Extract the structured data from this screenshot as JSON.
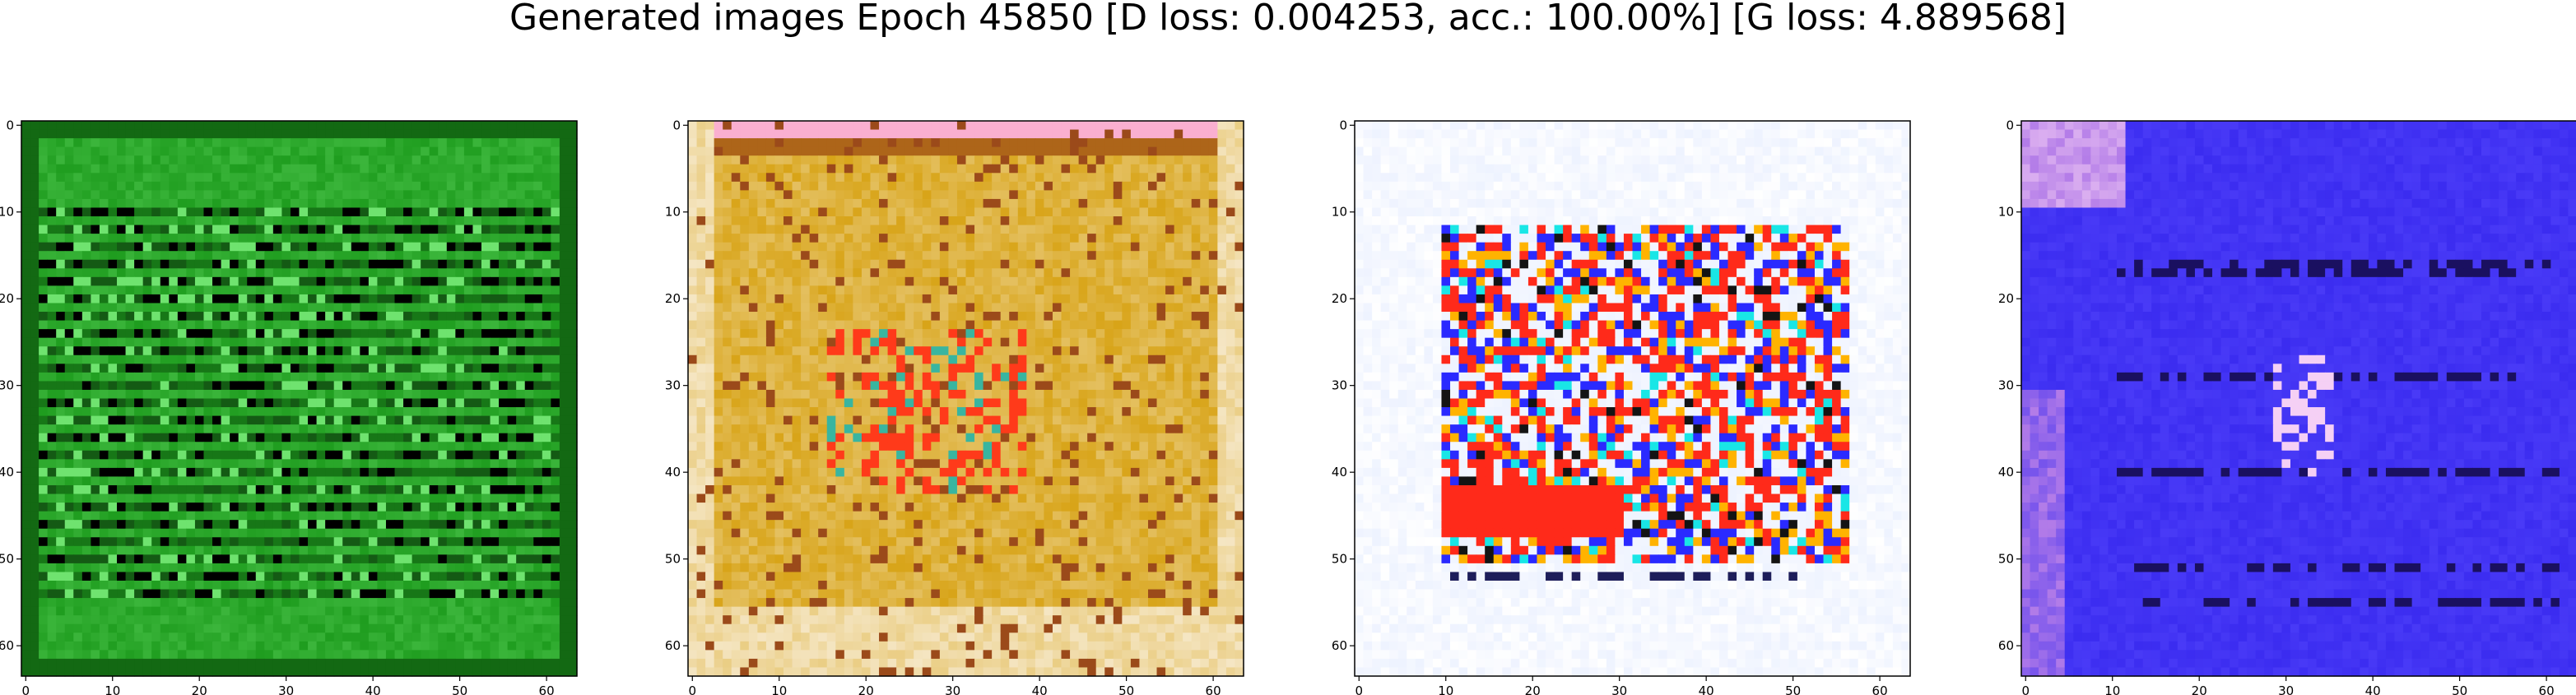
{
  "figure": {
    "title": "Generated images Epoch 45850 [D loss: 0.004253, acc.: 100.00%] [G loss: 4.889568]"
  },
  "axes": {
    "x_ticks": [
      "0",
      "10",
      "20",
      "30",
      "40",
      "50",
      "60"
    ],
    "y_ticks": [
      "0",
      "10",
      "20",
      "30",
      "40",
      "50",
      "60"
    ],
    "range": [
      0,
      64
    ]
  },
  "panels": [
    {
      "dominant_color": "#1f9d1f",
      "secondary_color": "#0a3f0a",
      "accent_colors": [
        "#6fe36f",
        "#000000",
        "#145a14"
      ],
      "pattern": "horizontal-stripes"
    },
    {
      "dominant_color": "#d8a418",
      "secondary_color": "#f5e6c4",
      "accent_colors": [
        "#ff3a1a",
        "#39b5a0",
        "#9b4a1a"
      ],
      "pattern": "vertical-blobs"
    },
    {
      "dominant_color": "#ffffff",
      "secondary_color": "#ff2a1a",
      "accent_colors": [
        "#2a2aff",
        "#ffb300",
        "#19e6e6"
      ],
      "pattern": "central-block"
    },
    {
      "dominant_color": "#3b2cf0",
      "secondary_color": "#b37ce8",
      "accent_colors": [
        "#1a1060",
        "#f5d0f5",
        "#5a4cff"
      ],
      "pattern": "horizontal-dark-lines"
    }
  ]
}
